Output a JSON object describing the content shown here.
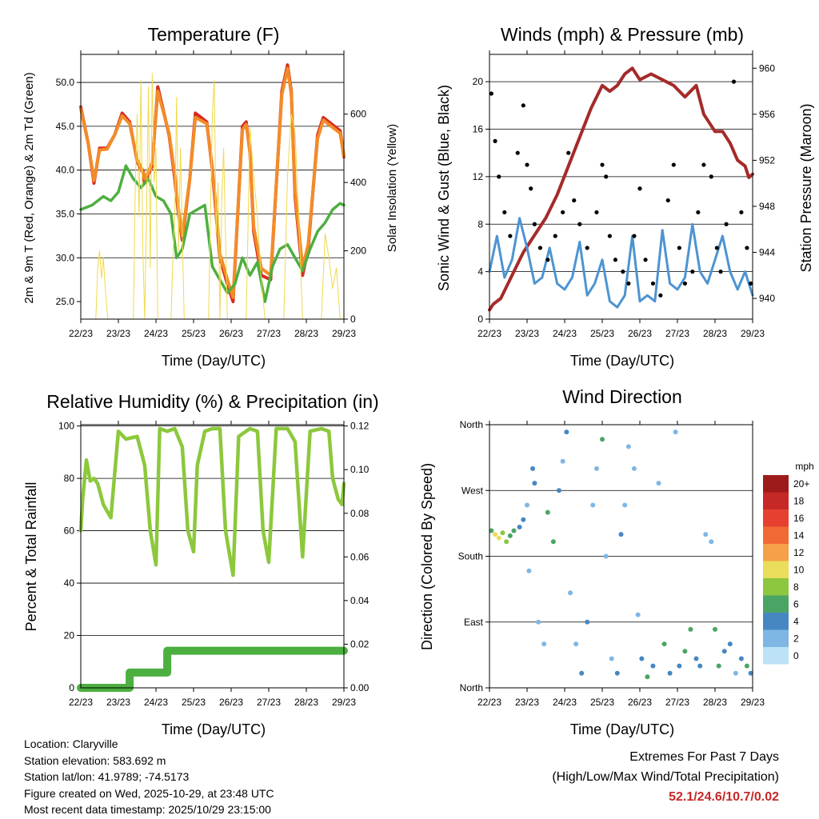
{
  "time_ticks": [
    "22/23",
    "23/23",
    "24/23",
    "25/23",
    "26/23",
    "27/23",
    "28/23",
    "29/23"
  ],
  "time_label": "Time (Day/UTC)",
  "chart_data": [
    {
      "id": "temperature",
      "type": "line",
      "title": "Temperature (F)",
      "ylabel": "2m & 9m T (Red, Orange) & 2m Td (Green)",
      "ylabel_right": "Solar Insolation (Yellow)",
      "ylim": [
        23,
        53.2
      ],
      "yticks": [
        "25.0",
        "30.0",
        "35.0",
        "40.0",
        "45.0",
        "50.0"
      ],
      "ylim_right": [
        0,
        775
      ],
      "yticks_right": [
        "0",
        "200",
        "400",
        "600"
      ],
      "series": [
        {
          "name": "2m T",
          "color": "#d62c22",
          "x": [
            0,
            0.2,
            0.35,
            0.5,
            0.7,
            0.9,
            1.1,
            1.3,
            1.5,
            1.6,
            1.65,
            1.7,
            1.9,
            2.05,
            2.35,
            2.5,
            2.6,
            2.7,
            2.9,
            3.05,
            3.35,
            3.5,
            3.6,
            3.7,
            3.9,
            4.05,
            4.3,
            4.4,
            4.5,
            4.6,
            4.8,
            5.05,
            5.35,
            5.5,
            5.6,
            5.7,
            5.9,
            6.05,
            6.3,
            6.45,
            6.6,
            6.9,
            7.0
          ],
          "values": [
            47.2,
            43,
            38.5,
            42.5,
            42.5,
            44,
            46.5,
            45.5,
            41,
            40,
            40,
            38.5,
            40.5,
            49.5,
            44,
            39,
            35,
            32,
            39,
            46.5,
            45.5,
            40,
            35,
            30,
            27,
            25,
            45,
            45.5,
            42,
            33,
            28,
            27.5,
            49,
            52,
            49,
            37,
            28,
            31,
            44,
            46,
            45.5,
            44.5,
            41.5
          ]
        },
        {
          "name": "9m T",
          "color": "#f28c28",
          "x": [
            0,
            0.2,
            0.35,
            0.5,
            0.7,
            0.9,
            1.1,
            1.3,
            1.5,
            1.6,
            1.7,
            1.9,
            2.05,
            2.35,
            2.5,
            2.6,
            2.7,
            2.9,
            3.05,
            3.35,
            3.5,
            3.6,
            3.7,
            3.9,
            4.05,
            4.3,
            4.4,
            4.5,
            4.6,
            4.8,
            5.05,
            5.35,
            5.5,
            5.6,
            5.7,
            5.9,
            6.05,
            6.3,
            6.45,
            6.6,
            6.9,
            7.0
          ],
          "values": [
            47,
            43,
            38.8,
            42.3,
            42.4,
            44,
            46.2,
            45.3,
            41.2,
            40.4,
            39,
            40.8,
            49,
            44.2,
            39.5,
            35.5,
            32.5,
            39,
            46,
            45.3,
            40.3,
            35.5,
            30.5,
            27.5,
            25.5,
            44.6,
            45.2,
            42.2,
            33.5,
            28.8,
            28,
            48.6,
            51.6,
            48.7,
            37.6,
            28.8,
            31.5,
            43.6,
            45.7,
            45.2,
            44.2,
            41.6
          ]
        },
        {
          "name": "2m Td",
          "color": "#4daf3f",
          "x": [
            0,
            0.3,
            0.6,
            0.8,
            1.0,
            1.2,
            1.4,
            1.6,
            1.8,
            2.0,
            2.2,
            2.4,
            2.55,
            2.7,
            2.9,
            3.1,
            3.3,
            3.5,
            3.7,
            3.9,
            4.1,
            4.3,
            4.5,
            4.7,
            4.9,
            5.1,
            5.3,
            5.5,
            5.7,
            5.9,
            6.1,
            6.3,
            6.5,
            6.7,
            6.9,
            7.0
          ],
          "values": [
            35.5,
            36,
            37,
            36.5,
            37.5,
            40.5,
            39,
            38,
            39,
            37,
            36.5,
            35,
            30,
            31,
            35,
            35.5,
            36,
            29,
            27.5,
            26,
            27,
            30,
            28,
            29.5,
            25,
            29,
            31,
            31.5,
            30,
            28.5,
            31,
            33,
            34,
            35.5,
            36.2,
            36
          ]
        },
        {
          "name": "Solar",
          "color": "#f0d94a",
          "axis": "right",
          "x": [
            0.4,
            0.45,
            0.5,
            0.55,
            0.6,
            0.65,
            0.72,
            1.4,
            1.45,
            1.5,
            1.55,
            1.6,
            1.65,
            1.7,
            1.75,
            1.8,
            1.85,
            1.9,
            1.95,
            2.0,
            2.05,
            2.1,
            2.2,
            2.4,
            2.45,
            2.5,
            2.55,
            2.6,
            2.65,
            2.7,
            2.75,
            2.8,
            2.9,
            3.4,
            3.45,
            3.5,
            3.55,
            3.6,
            3.65,
            3.7,
            3.75,
            3.8,
            3.9,
            4.4,
            4.5,
            4.6,
            4.7,
            4.8,
            4.9,
            5.4,
            5.5,
            5.6,
            5.7,
            5.8,
            5.9,
            6.4,
            6.5,
            6.6,
            6.7,
            6.8,
            6.9
          ],
          "values": [
            0,
            150,
            200,
            120,
            180,
            90,
            0,
            0,
            380,
            600,
            300,
            700,
            200,
            0,
            320,
            680,
            150,
            720,
            400,
            500,
            0,
            0,
            0,
            0,
            180,
            300,
            650,
            200,
            500,
            250,
            0,
            0,
            0,
            0,
            300,
            600,
            700,
            250,
            400,
            0,
            350,
            500,
            0,
            0,
            560,
            420,
            300,
            120,
            0,
            0,
            420,
            600,
            550,
            300,
            0,
            0,
            250,
            180,
            90,
            150,
            0
          ]
        }
      ]
    },
    {
      "id": "winds",
      "type": "line",
      "title": "Winds (mph) & Pressure (mb)",
      "ylabel": "Sonic Wind & Gust (Blue, Black)",
      "ylabel_right": "Station Pressure (Maroon)",
      "ylim": [
        0,
        22.3
      ],
      "yticks": [
        "0",
        "4",
        "8",
        "12",
        "16",
        "20"
      ],
      "ylim_right": [
        938.2,
        961.2
      ],
      "yticks_right": [
        "940",
        "944",
        "948",
        "952",
        "956",
        "960"
      ],
      "series": [
        {
          "name": "Station Pressure",
          "color": "#a52a2a",
          "axis": "right",
          "x": [
            0,
            0.1,
            0.3,
            0.6,
            0.9,
            1.2,
            1.5,
            1.8,
            2.1,
            2.4,
            2.7,
            3.0,
            3.2,
            3.4,
            3.6,
            3.8,
            4.0,
            4.3,
            4.6,
            4.9,
            5.2,
            5.5,
            5.7,
            5.9,
            6.0,
            6.2,
            6.4,
            6.6,
            6.8,
            6.9,
            7.0
          ],
          "values": [
            939,
            939.5,
            940,
            942,
            944,
            945.5,
            947,
            949,
            951.5,
            954,
            956.5,
            958.5,
            958,
            958.5,
            959.5,
            960,
            959,
            959.5,
            959,
            958.5,
            957.5,
            958.5,
            956,
            955,
            954.5,
            954.5,
            953.5,
            952,
            951.5,
            950.5,
            950.8
          ]
        },
        {
          "name": "Sonic Wind",
          "color": "#4d94d1",
          "x": [
            0,
            0.2,
            0.4,
            0.6,
            0.8,
            1.0,
            1.2,
            1.4,
            1.6,
            1.8,
            2.0,
            2.2,
            2.4,
            2.6,
            2.8,
            3.0,
            3.2,
            3.4,
            3.6,
            3.8,
            4.0,
            4.2,
            4.4,
            4.6,
            4.8,
            5.0,
            5.2,
            5.4,
            5.6,
            5.8,
            6.0,
            6.2,
            6.4,
            6.6,
            6.8,
            7.0
          ],
          "values": [
            4,
            7,
            3.5,
            5,
            8.5,
            6,
            3,
            3.5,
            6,
            3,
            2.5,
            3.5,
            6.5,
            2,
            3,
            5,
            1.5,
            1,
            2,
            7,
            1.5,
            2,
            1.5,
            7.5,
            3,
            2.5,
            3.5,
            8,
            4,
            3,
            5,
            7,
            4,
            2.5,
            4,
            2
          ]
        },
        {
          "name": "Gust",
          "color": "#000000",
          "type": "scatter",
          "x": [
            0.05,
            0.15,
            0.25,
            0.4,
            0.55,
            0.75,
            0.9,
            1.0,
            1.1,
            1.2,
            1.35,
            1.55,
            1.75,
            1.95,
            2.1,
            2.25,
            2.4,
            2.6,
            2.85,
            3.0,
            3.1,
            3.2,
            3.35,
            3.55,
            3.7,
            3.85,
            4.0,
            4.15,
            4.35,
            4.55,
            4.75,
            4.9,
            5.05,
            5.2,
            5.4,
            5.55,
            5.7,
            5.9,
            6.05,
            6.15,
            6.3,
            6.5,
            6.7,
            6.85,
            6.95
          ],
          "values": [
            19,
            15,
            12,
            9,
            7,
            14,
            18,
            13,
            11,
            8,
            6,
            5,
            7,
            9,
            14,
            10,
            8,
            6,
            9,
            13,
            12,
            7,
            5,
            4,
            3,
            7,
            11,
            5,
            3,
            2,
            10,
            13,
            6,
            3,
            4,
            9,
            13,
            12,
            6,
            4,
            8,
            20,
            9,
            6,
            3
          ]
        }
      ]
    },
    {
      "id": "humidity",
      "type": "line",
      "title": "Relative Humidity (%) & Precipitation (in)",
      "ylabel": "Percent & Total Rainfall",
      "ylim": [
        0,
        100.5
      ],
      "yticks": [
        "0",
        "20",
        "40",
        "60",
        "80",
        "100"
      ],
      "ylim_right": [
        0,
        0.1206
      ],
      "yticks_right": [
        "0.00",
        "0.02",
        "0.04",
        "0.06",
        "0.08",
        "0.10",
        "0.12"
      ],
      "series": [
        {
          "name": "RH",
          "color": "#8cc83c",
          "x": [
            0,
            0.05,
            0.15,
            0.25,
            0.35,
            0.45,
            0.6,
            0.8,
            1.0,
            1.2,
            1.5,
            1.7,
            1.85,
            2.0,
            2.1,
            2.3,
            2.5,
            2.7,
            2.85,
            3.0,
            3.1,
            3.3,
            3.5,
            3.7,
            3.85,
            4.05,
            4.2,
            4.5,
            4.7,
            4.85,
            5.0,
            5.2,
            5.5,
            5.7,
            5.9,
            6.1,
            6.4,
            6.6,
            6.7,
            6.85,
            6.95,
            7.0
          ],
          "values": [
            60,
            72,
            87,
            79,
            80,
            78,
            70,
            65,
            98,
            95,
            96,
            85,
            60,
            47,
            99,
            98,
            99,
            92,
            60,
            52,
            85,
            98,
            99,
            99,
            60,
            43,
            96,
            99,
            98,
            60,
            48,
            99,
            99,
            94,
            50,
            98,
            99,
            98,
            80,
            72,
            70,
            78
          ]
        },
        {
          "name": "Total Rainfall",
          "color": "#4caf3f",
          "axis": "right",
          "x": [
            0,
            1.3,
            1.3,
            2.3,
            2.3,
            7.0
          ],
          "values": [
            0,
            0,
            0.007,
            0.007,
            0.017,
            0.017
          ]
        }
      ]
    },
    {
      "id": "direction",
      "type": "scatter",
      "title": "Wind Direction",
      "ylabel": "Direction (Colored By Speed)",
      "ylim": [
        0,
        360
      ],
      "yticks": [
        "North",
        "East",
        "South",
        "West",
        "North"
      ],
      "legend": {
        "title": "mph",
        "labels": [
          "20+",
          "18",
          "16",
          "14",
          "12",
          "10",
          "8",
          "6",
          "4",
          "2",
          "0"
        ],
        "colors": [
          "#9e1b1b",
          "#c62828",
          "#e64031",
          "#f06a33",
          "#f5a14a",
          "#e9dd5b",
          "#8dc63f",
          "#4aa564",
          "#4687c2",
          "#7fb6e3",
          "#bde1f5"
        ]
      },
      "x": [
        0.05,
        0.15,
        0.25,
        0.35,
        0.45,
        0.55,
        0.65,
        0.8,
        0.9,
        1.0,
        1.05,
        1.15,
        1.2,
        1.3,
        1.45,
        1.55,
        1.7,
        1.85,
        1.95,
        2.05,
        2.15,
        2.3,
        2.45,
        2.6,
        2.75,
        2.85,
        3.0,
        3.1,
        3.25,
        3.4,
        3.5,
        3.6,
        3.7,
        3.85,
        3.95,
        4.05,
        4.2,
        4.35,
        4.5,
        4.65,
        4.8,
        4.95,
        5.05,
        5.2,
        5.35,
        5.5,
        5.6,
        5.75,
        5.9,
        6.0,
        6.1,
        6.25,
        6.4,
        6.55,
        6.7,
        6.85,
        6.95
      ],
      "values": [
        215,
        210,
        205,
        212,
        200,
        208,
        215,
        220,
        230,
        250,
        160,
        300,
        280,
        90,
        60,
        240,
        200,
        270,
        310,
        350,
        130,
        60,
        20,
        90,
        250,
        300,
        340,
        180,
        40,
        20,
        210,
        250,
        330,
        300,
        100,
        40,
        15,
        30,
        280,
        60,
        20,
        350,
        30,
        50,
        80,
        40,
        30,
        210,
        200,
        80,
        30,
        50,
        60,
        20,
        40,
        30,
        20
      ],
      "speeds": [
        6,
        9,
        10,
        8,
        7,
        5,
        6,
        4,
        3,
        2,
        1,
        4,
        3,
        1,
        2,
        5,
        6,
        3,
        2,
        4,
        1,
        2,
        3,
        4,
        1,
        2,
        5,
        1,
        2,
        4,
        3,
        2,
        1,
        2,
        1,
        4,
        5,
        3,
        2,
        5,
        4,
        1,
        3,
        6,
        5,
        4,
        3,
        2,
        1,
        5,
        6,
        4,
        3,
        2,
        4,
        5,
        3
      ]
    }
  ],
  "footer": {
    "location": "Location: Claryville",
    "elevation": "Station elevation: 583.692 m",
    "latlon": "Station lat/lon: 41.9789; -74.5173",
    "created": "Figure created on Wed, 2025-10-29, at 23:48 UTC",
    "recent": "Most recent data timestamp: 2025/10/29 23:15:00"
  },
  "extremes": {
    "title": "Extremes For Past 7 Days",
    "subtitle": "(High/Low/Max Wind/Total Precipitation)",
    "values": "52.1/24.6/10.7/0.02"
  }
}
